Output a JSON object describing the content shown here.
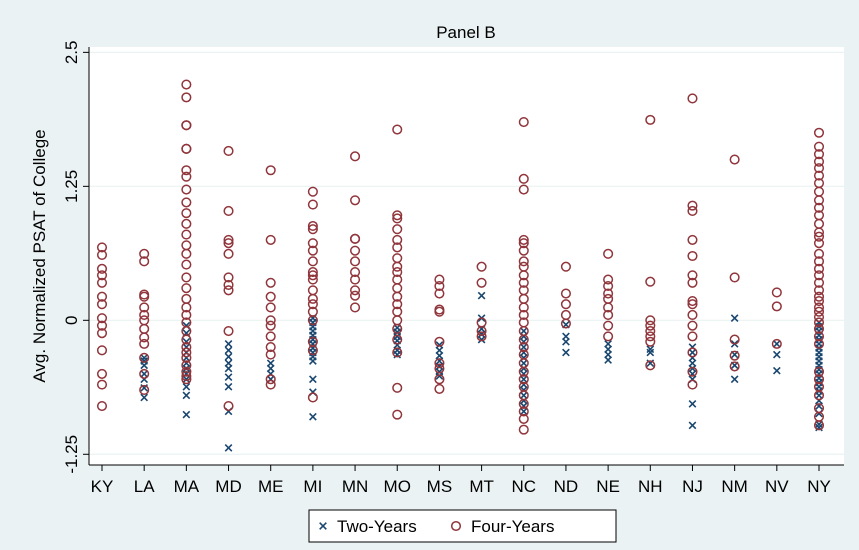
{
  "chart_data": {
    "type": "scatter",
    "title": "Panel B",
    "ylabel": "Avg. Normalized PSAT of College",
    "xlabel": "",
    "categories": [
      "KY",
      "LA",
      "MA",
      "MD",
      "ME",
      "MI",
      "MN",
      "MO",
      "MS",
      "MT",
      "NC",
      "ND",
      "NE",
      "NH",
      "NJ",
      "NM",
      "NV",
      "NY"
    ],
    "yticks": [
      -1.25,
      0,
      1.25,
      2.5
    ],
    "ytick_labels": [
      "-1.25",
      "0",
      "1.25",
      "2.5"
    ],
    "ylim": [
      -1.35,
      2.55
    ],
    "grid": true,
    "legend_position": "bottom",
    "colors": {
      "two_years": "#1a476f",
      "four_years": "#90353b",
      "plot_bg": "#ffffff",
      "outer_bg": "#eaf2f3",
      "grid": "#eaf2f3"
    },
    "series": [
      {
        "name": "Two-Years",
        "marker": "x",
        "points": {
          "KY": [],
          "LA": [
            -0.35,
            -0.38,
            -0.42,
            -0.5,
            -0.55,
            -0.63,
            -0.72
          ],
          "MA": [
            -0.05,
            -0.12,
            -0.2,
            -0.25,
            -0.3,
            -0.35,
            -0.4,
            -0.45,
            -0.5,
            -0.55,
            -0.62,
            -0.7,
            -0.88
          ],
          "MD": [
            -0.22,
            -0.28,
            -0.34,
            -0.4,
            -0.45,
            -0.53,
            -0.62,
            -0.85,
            -1.19
          ],
          "ME": [
            -0.4,
            -0.45,
            -0.5,
            -0.55
          ],
          "MI": [
            0.02,
            -0.02,
            -0.06,
            -0.1,
            -0.14,
            -0.18,
            -0.22,
            -0.26,
            -0.3,
            -0.34,
            -0.38,
            -0.55,
            -0.67,
            -0.9
          ],
          "MN": [],
          "MO": [
            -0.07,
            -0.11,
            -0.15,
            -0.19,
            -0.23,
            -0.28,
            -0.32
          ],
          "MS": [
            -0.23,
            -0.28,
            -0.33,
            -0.38,
            -0.43,
            -0.48,
            -0.52
          ],
          "MT": [
            0.23,
            0.02,
            -0.08,
            -0.13,
            -0.18
          ],
          "NC": [
            -0.1,
            -0.15,
            -0.2,
            -0.25,
            -0.3,
            -0.35,
            -0.4,
            -0.45,
            -0.5,
            -0.55,
            -0.6,
            -0.65,
            -0.7,
            -0.75,
            -0.8,
            -0.85
          ],
          "ND": [
            -0.04,
            -0.15,
            -0.2,
            -0.3
          ],
          "NE": [
            -0.22,
            -0.27,
            -0.32,
            -0.37
          ],
          "NH": [
            -0.27,
            -0.3,
            -0.4
          ],
          "NJ": [
            -0.25,
            -0.3,
            -0.35,
            -0.4,
            -0.45,
            -0.5,
            -0.55,
            -0.78,
            -0.98
          ],
          "NM": [
            0.02,
            -0.22,
            -0.32,
            -0.42,
            -0.55
          ],
          "NV": [
            -0.22,
            -0.32,
            -0.47
          ],
          "NY": [
            -0.02,
            -0.06,
            -0.1,
            -0.14,
            -0.18,
            -0.22,
            -0.26,
            -0.3,
            -0.34,
            -0.38,
            -0.42,
            -0.46,
            -0.5,
            -0.54,
            -0.58,
            -0.62,
            -0.66,
            -0.7,
            -0.75,
            -0.8,
            -0.87,
            -0.97,
            -1.0
          ]
        }
      },
      {
        "name": "Four-Years",
        "marker": "circle",
        "points": {
          "KY": [
            0.68,
            0.61,
            0.48,
            0.42,
            0.35,
            0.22,
            0.15,
            0.02,
            -0.05,
            -0.12,
            -0.28,
            -0.5,
            -0.6,
            -0.8
          ],
          "LA": [
            0.62,
            0.55,
            0.24,
            0.22,
            0.12,
            0.05,
            0.0,
            -0.08,
            -0.16,
            -0.22,
            -0.35,
            -0.5,
            -0.65
          ],
          "MA": [
            2.2,
            2.08,
            1.82,
            1.82,
            1.6,
            1.6,
            1.4,
            1.34,
            1.22,
            1.1,
            1.0,
            0.9,
            0.8,
            0.7,
            0.62,
            0.52,
            0.4,
            0.3,
            0.2,
            0.12,
            0.05,
            -0.02,
            -0.1,
            -0.18,
            -0.25,
            -0.3,
            -0.35,
            -0.42,
            -0.48,
            -0.52,
            -0.55
          ],
          "MD": [
            1.58,
            1.02,
            0.75,
            0.72,
            0.62,
            0.4,
            0.33,
            0.28,
            -0.1,
            -0.8
          ],
          "ME": [
            1.4,
            0.75,
            0.35,
            0.22,
            0.12,
            0.0,
            -0.05,
            -0.15,
            -0.25,
            -0.32,
            -0.55,
            -0.6
          ],
          "MI": [
            1.2,
            1.08,
            0.88,
            0.85,
            0.72,
            0.65,
            0.55,
            0.45,
            0.42,
            0.38,
            0.28,
            0.2,
            0.15,
            0.08,
            0.0,
            -0.2,
            -0.28,
            -0.72
          ],
          "MN": [
            1.53,
            1.12,
            0.76,
            0.76,
            0.65,
            0.55,
            0.45,
            0.38,
            0.28,
            0.23,
            0.12
          ],
          "MO": [
            1.78,
            0.98,
            0.95,
            0.85,
            0.75,
            0.68,
            0.58,
            0.5,
            0.45,
            0.38,
            0.3,
            0.22,
            0.15,
            0.08,
            0.0,
            -0.08,
            -0.18,
            -0.3,
            -0.63,
            -0.88
          ],
          "MS": [
            0.38,
            0.32,
            0.25,
            0.1,
            0.08,
            -0.2,
            -0.4,
            -0.45,
            -0.55,
            -0.64
          ],
          "MT": [
            0.5,
            0.35,
            -0.02,
            -0.1,
            -0.15
          ],
          "NC": [
            1.85,
            1.32,
            1.22,
            0.75,
            0.72,
            0.65,
            0.55,
            0.5,
            0.42,
            0.35,
            0.28,
            0.2,
            0.12,
            0.05,
            -0.02,
            -0.1,
            -0.18,
            -0.25,
            -0.32,
            -0.4,
            -0.48,
            -0.55,
            -0.62,
            -0.7,
            -0.78,
            -0.85,
            -0.92,
            -1.02
          ],
          "ND": [
            0.5,
            0.25,
            0.15,
            0.05,
            -0.03
          ],
          "NE": [
            0.62,
            0.38,
            0.32,
            0.25,
            0.2,
            0.12,
            0.05,
            -0.05,
            -0.15
          ],
          "NH": [
            1.87,
            0.36,
            0.0,
            -0.05,
            -0.1,
            -0.15,
            -0.2,
            -0.42
          ],
          "NJ": [
            2.07,
            1.07,
            1.02,
            0.75,
            0.6,
            0.42,
            0.35,
            0.18,
            0.15,
            0.05,
            -0.05,
            -0.15,
            -0.3,
            -0.48,
            -0.6
          ],
          "NM": [
            1.5,
            0.4,
            -0.18,
            -0.33,
            -0.43
          ],
          "NV": [
            0.26,
            0.13,
            -0.22
          ],
          "NY": [
            1.75,
            1.62,
            1.55,
            1.48,
            1.42,
            1.35,
            1.28,
            1.2,
            1.12,
            1.05,
            0.98,
            0.9,
            0.82,
            0.78,
            0.72,
            0.62,
            0.55,
            0.48,
            0.42,
            0.35,
            0.28,
            0.22,
            0.18,
            0.12,
            0.08,
            0.03,
            -0.02,
            -0.08,
            -0.15,
            -0.22,
            -0.48,
            -0.55,
            -0.62,
            -0.7,
            -0.82,
            -0.9,
            -0.98
          ]
        }
      }
    ]
  }
}
